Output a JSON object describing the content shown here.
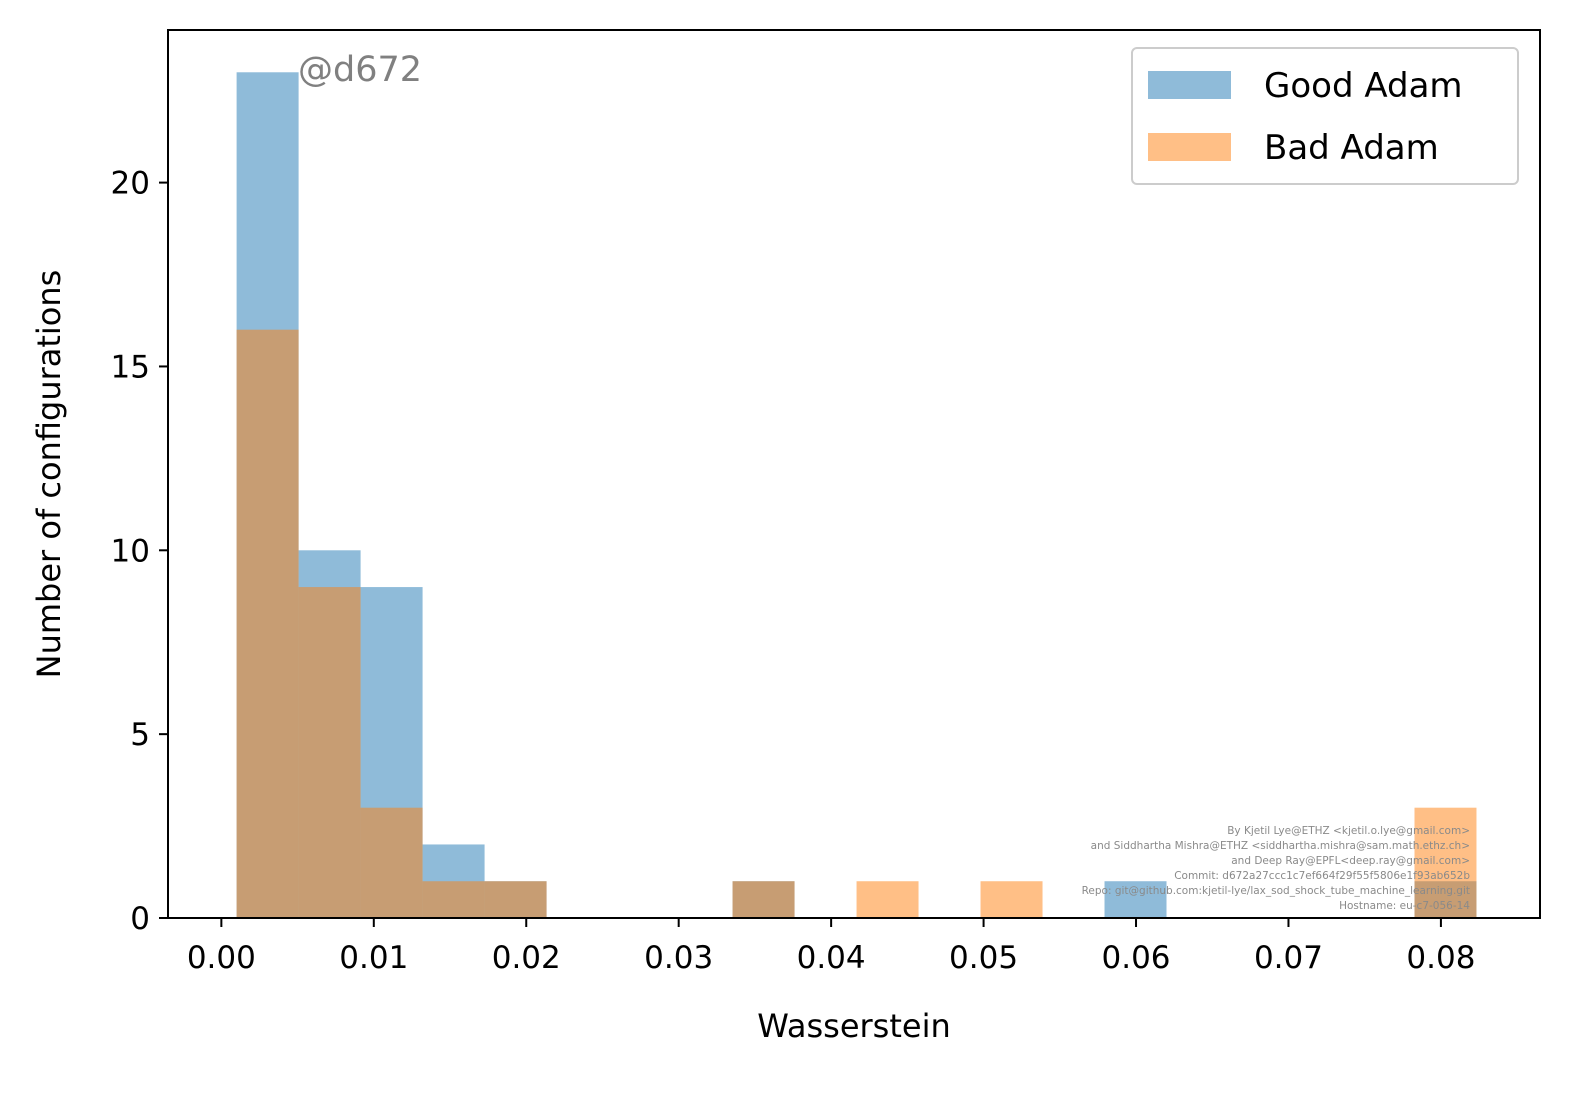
{
  "chart_data": {
    "type": "bar",
    "xlabel": "Wasserstein",
    "ylabel": "Number of configurations",
    "xlim": [
      -0.0035,
      0.0865
    ],
    "ylim": [
      0,
      24.15
    ],
    "xticks": [
      0.0,
      0.01,
      0.02,
      0.03,
      0.04,
      0.05,
      0.06,
      0.07,
      0.08
    ],
    "xtick_labels": [
      "0.00",
      "0.01",
      "0.02",
      "0.03",
      "0.04",
      "0.05",
      "0.06",
      "0.07",
      "0.08"
    ],
    "yticks": [
      0,
      5,
      10,
      15,
      20
    ],
    "ytick_labels": [
      "0",
      "5",
      "10",
      "15",
      "20"
    ],
    "bin_edges": [
      0.001,
      0.005067,
      0.009133,
      0.0132,
      0.017267,
      0.021333,
      0.0254,
      0.029467,
      0.033533,
      0.0376,
      0.041667,
      0.045733,
      0.0498,
      0.053867,
      0.057933,
      0.062,
      0.066067,
      0.070133,
      0.0742,
      0.078267,
      0.082333
    ],
    "series": [
      {
        "name": "Good Adam",
        "color": "#1f77b4",
        "alpha": 0.5,
        "values": [
          23,
          10,
          9,
          2,
          1,
          0,
          0,
          0,
          1,
          0,
          0,
          0,
          0,
          0,
          1,
          0,
          0,
          0,
          0,
          1
        ]
      },
      {
        "name": "Bad Adam",
        "color": "#ff7f0e",
        "alpha": 0.5,
        "values": [
          16,
          9,
          3,
          1,
          1,
          0,
          0,
          0,
          1,
          0,
          1,
          0,
          1,
          0,
          0,
          0,
          0,
          0,
          0,
          3
        ]
      }
    ],
    "legend_position": "top-right",
    "grid": false,
    "annotations": {
      "commit_tag": "@d672",
      "signature_lines": [
        "By Kjetil Lye@ETHZ <kjetil.o.lye@gmail.com>",
        "and Siddhartha Mishra@ETHZ <siddhartha.mishra@sam.math.ethz.ch>",
        "and Deep Ray@EPFL<deep.ray@gmail.com>",
        "Commit: d672a27ccc1c7ef664f29f55f5806e1f93ab652b",
        "Repo: git@github.com:kjetil-lye/lax_sod_shock_tube_machine_learning.git",
        "Hostname: eu-c7-056-14"
      ]
    }
  }
}
